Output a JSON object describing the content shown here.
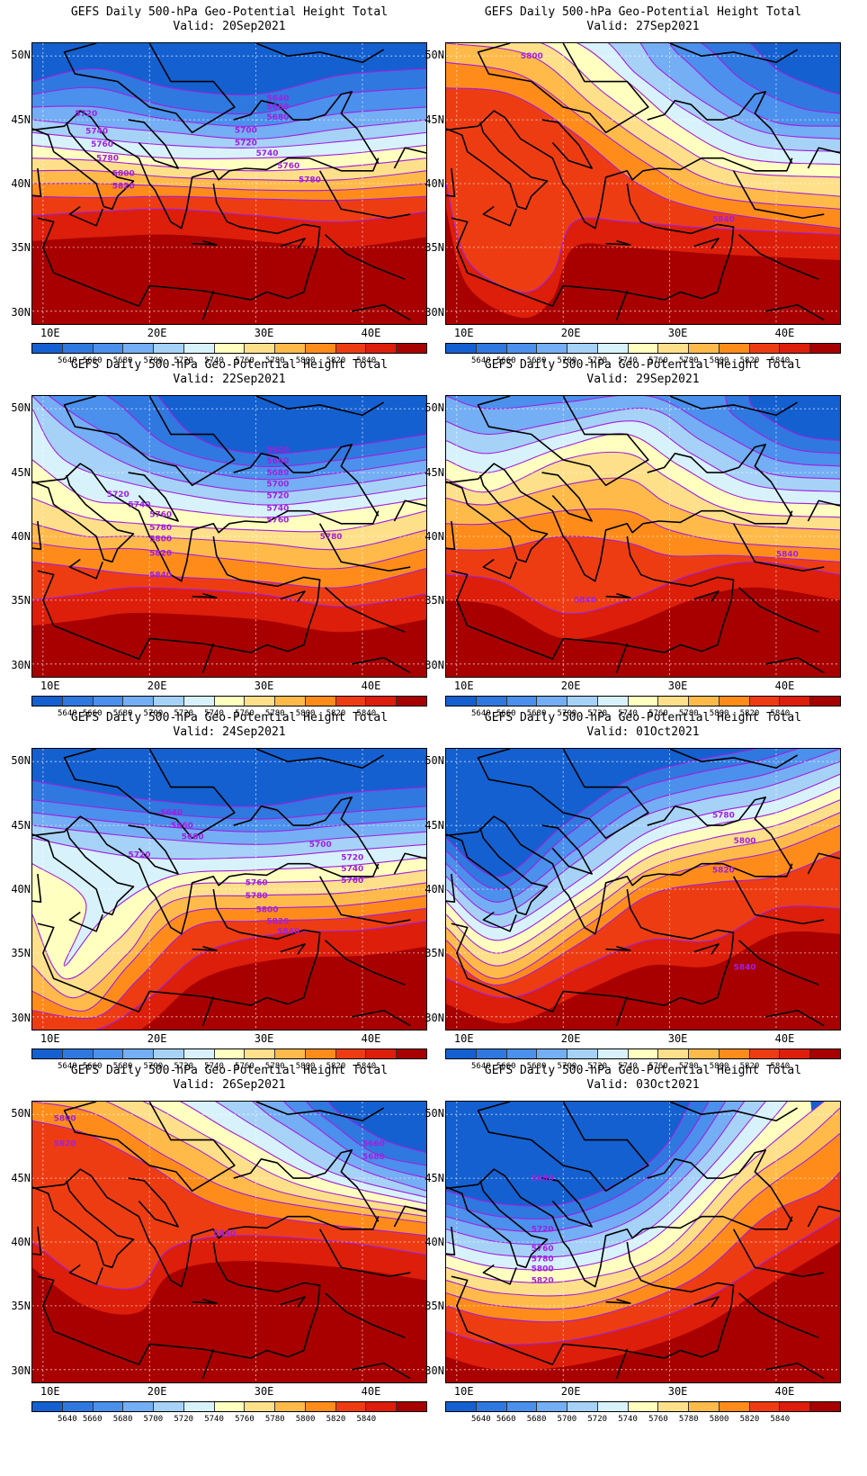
{
  "colorbar": {
    "labels": [
      "5640",
      "5660",
      "5680",
      "5700",
      "5720",
      "5740",
      "5760",
      "5780",
      "5800",
      "5820",
      "5840"
    ],
    "colors": [
      "#1460d0",
      "#2f78e0",
      "#4a90ec",
      "#74aef4",
      "#a6d2f8",
      "#d8f2fc",
      "#ffffc0",
      "#ffe08a",
      "#ffba4a",
      "#ff8c1a",
      "#ee3c12",
      "#dc1e0a",
      "#a80000"
    ]
  },
  "axes": {
    "lat_labels": [
      "50N",
      "45N",
      "40N",
      "35N",
      "30N"
    ],
    "lon_labels": [
      "10E",
      "20E",
      "30E",
      "40E"
    ]
  },
  "panels": [
    {
      "title": "GEFS Daily 500-hPa Geo-Potential Height Total",
      "valid": "Valid: 20Sep2021",
      "contour_labels": [
        "5640",
        "5660",
        "5680",
        "5700",
        "5720",
        "5720",
        "5740",
        "5740",
        "5760",
        "5760",
        "5780",
        "5780",
        "5800",
        "5820"
      ]
    },
    {
      "title": "GEFS Daily 500-hPa Geo-Potential Height Total",
      "valid": "Valid: 27Sep2021",
      "contour_labels": [
        "5800",
        "5840"
      ]
    },
    {
      "title": "GEFS Daily 500-hPa Geo-Potential Height Total",
      "valid": "Valid: 22Sep2021",
      "contour_labels": [
        "5640",
        "5660",
        "5680",
        "5700",
        "5720",
        "5720",
        "5740",
        "5740",
        "5760",
        "5760",
        "5780",
        "5780",
        "5800",
        "5820",
        "5840"
      ]
    },
    {
      "title": "GEFS Daily 500-hPa Geo-Potential Height Total",
      "valid": "Valid: 29Sep2021",
      "contour_labels": [
        "5840",
        "5840"
      ]
    },
    {
      "title": "GEFS Daily 500-hPa Geo-Potential Height Total",
      "valid": "Valid: 24Sep2021",
      "contour_labels": [
        "5640",
        "5660",
        "5680",
        "5700",
        "5720",
        "5720",
        "5740",
        "5760",
        "5760",
        "5780",
        "5800",
        "5820",
        "5840"
      ]
    },
    {
      "title": "GEFS Daily 500-hPa Geo-Potential Height Total",
      "valid": "Valid: 01Oct2021",
      "contour_labels": [
        "5780",
        "5800",
        "5820",
        "5840"
      ]
    },
    {
      "title": "GEFS Daily 500-hPa Geo-Potential Height Total",
      "valid": "Valid: 26Sep2021",
      "contour_labels": [
        "5800",
        "5820",
        "5660",
        "5680",
        "5840"
      ]
    },
    {
      "title": "GEFS Daily 500-hPa Geo-Potential Height Total",
      "valid": "Valid: 03Oct2021",
      "contour_labels": [
        "5680",
        "5720",
        "5760",
        "5780",
        "5800",
        "5820"
      ]
    }
  ]
}
